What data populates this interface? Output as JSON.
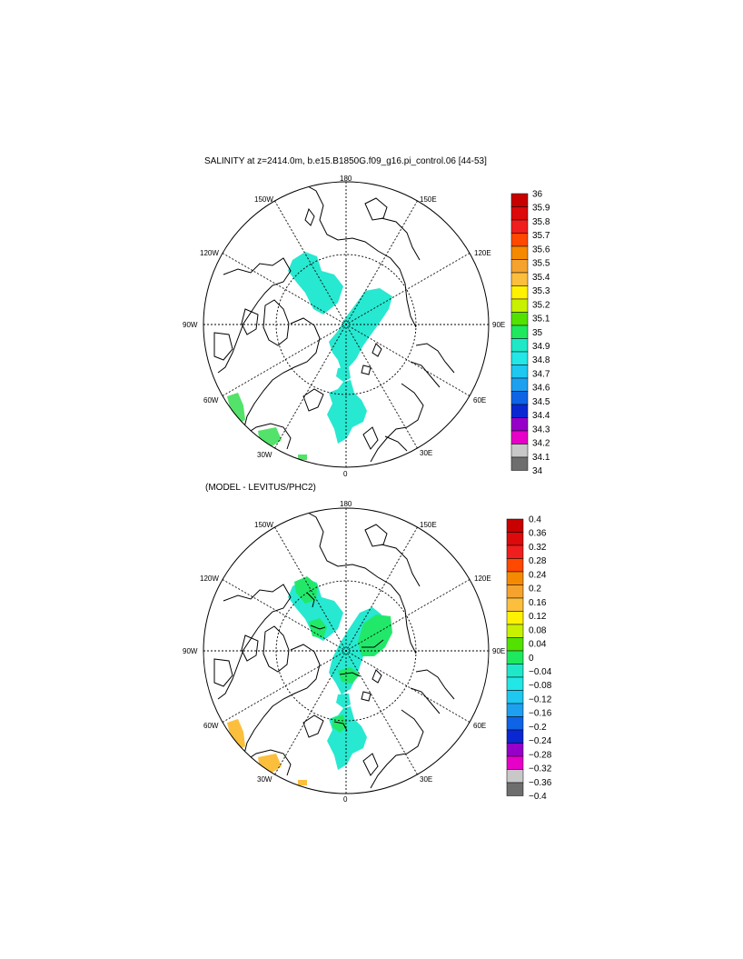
{
  "panels": [
    {
      "id": "salinity",
      "title": "SALINITY at z=2414.0m, b.e15.B1850G.f09_g16.pi_control.06 [44-53]",
      "lon_labels": {
        "180": "180",
        "150E": "150E",
        "120E": "120E",
        "90E": "90E",
        "60E": "60E",
        "30E": "30E",
        "0": "0",
        "30W": "30W",
        "60W": "60W",
        "90W": "90W",
        "120W": "120W",
        "150W": "150W"
      },
      "colorbar": {
        "labels": [
          "36",
          "35.9",
          "35.8",
          "35.7",
          "35.6",
          "35.5",
          "35.4",
          "35.3",
          "35.2",
          "35.1",
          "35",
          "34.9",
          "34.8",
          "34.7",
          "34.6",
          "34.5",
          "34.4",
          "34.3",
          "34.2",
          "34.1",
          "34"
        ],
        "colors": [
          "#c80000",
          "#dc0a0a",
          "#f01e1e",
          "#ff4800",
          "#f58a00",
          "#f5a32f",
          "#fbbf3d",
          "#fff100",
          "#c8f000",
          "#53e200",
          "#1fe85f",
          "#1fe8c8",
          "#23e6e6",
          "#1ec8f0",
          "#1ea0f0",
          "#0f64e6",
          "#0a28d2",
          "#9600c8",
          "#e600c8",
          "#c8c8c8",
          "#6e6e6e"
        ]
      }
    },
    {
      "id": "difference",
      "title": "(MODEL - LEVITUS/PHC2)",
      "lon_labels": {
        "180": "180",
        "150E": "150E",
        "120E": "120E",
        "90E": "90E",
        "60E": "60E",
        "30E": "30E",
        "0": "0",
        "30W": "30W",
        "60W": "60W",
        "90W": "90W",
        "120W": "120W",
        "150W": "150W"
      },
      "colorbar": {
        "labels": [
          "0.4",
          "0.36",
          "0.32",
          "0.28",
          "0.24",
          "0.2",
          "0.16",
          "0.12",
          "0.08",
          "0.04",
          "0",
          "−0.04",
          "−0.08",
          "−0.12",
          "−0.16",
          "−0.2",
          "−0.24",
          "−0.28",
          "−0.32",
          "−0.36",
          "−0.4"
        ],
        "colors": [
          "#c80000",
          "#dc0a0a",
          "#f01e1e",
          "#ff4800",
          "#f58a00",
          "#f5a32f",
          "#fbbf3d",
          "#fff100",
          "#c8f000",
          "#53e200",
          "#1fe85f",
          "#1fe8c8",
          "#23e6e6",
          "#1ec8f0",
          "#1ea0f0",
          "#0f64e6",
          "#0a28d2",
          "#9600c8",
          "#e600c8",
          "#c8c8c8",
          "#6e6e6e"
        ]
      }
    }
  ],
  "colors": {
    "salinity_field": "#27e8d0",
    "diff_zero_field": "#22e86a",
    "diff_neg_field": "#27e8d0",
    "diff_pos_field": "#fbbf3d",
    "salinity_high_field": "#53e26a"
  }
}
